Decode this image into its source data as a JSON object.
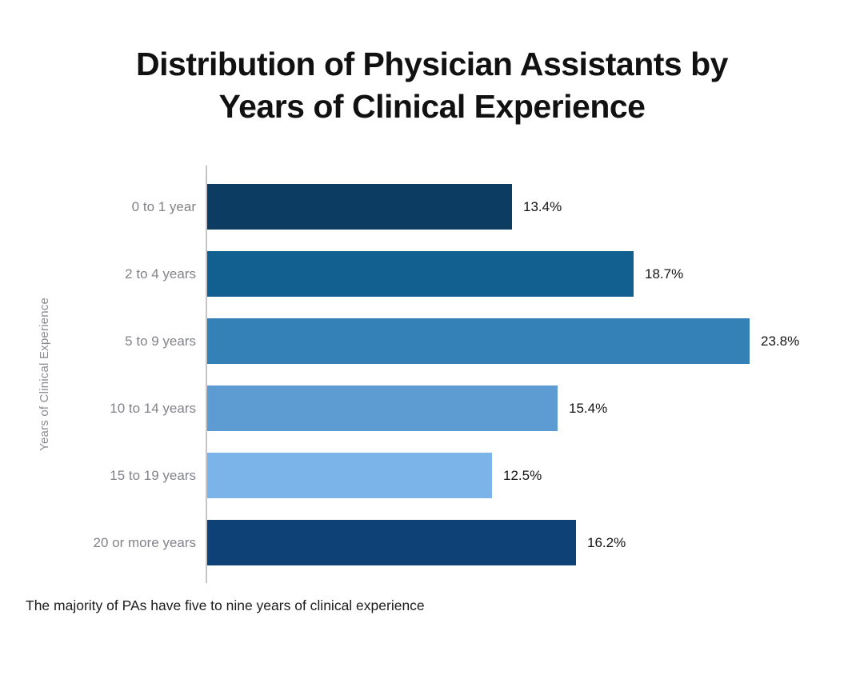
{
  "page": {
    "background_color": "#ffffff"
  },
  "chart_data": {
    "type": "bar",
    "orientation": "horizontal",
    "title": "Distribution of Physician Assistants by Years of Clinical Experience",
    "title_lines": [
      "Distribution of Physician Assistants by",
      "Years of Clinical Experience"
    ],
    "ylabel": "Years of Clinical Experience",
    "xlabel": "",
    "footnote": "The majority of PAs have five to nine years of clinical experience",
    "categories": [
      "0 to 1 year",
      "2 to 4 years",
      "5 to 9 years",
      "10 to 14 years",
      "15 to 19 years",
      "20 or more years"
    ],
    "values": [
      13.4,
      18.7,
      23.8,
      15.4,
      12.5,
      16.2
    ],
    "value_labels": [
      "13.4%",
      "18.7%",
      "23.8%",
      "15.4%",
      "12.5%",
      "16.2%"
    ],
    "bar_colors": [
      "#0d3c63",
      "#11608f",
      "#3381b7",
      "#5d9bd3",
      "#7ab4e8",
      "#0e4277"
    ],
    "axis_color": "#c5c5c9",
    "category_label_color": "#82828a",
    "value_label_color": "#141414",
    "xlim": [
      0,
      24.5
    ],
    "grid": false,
    "legend": "none",
    "data_labels": true
  }
}
